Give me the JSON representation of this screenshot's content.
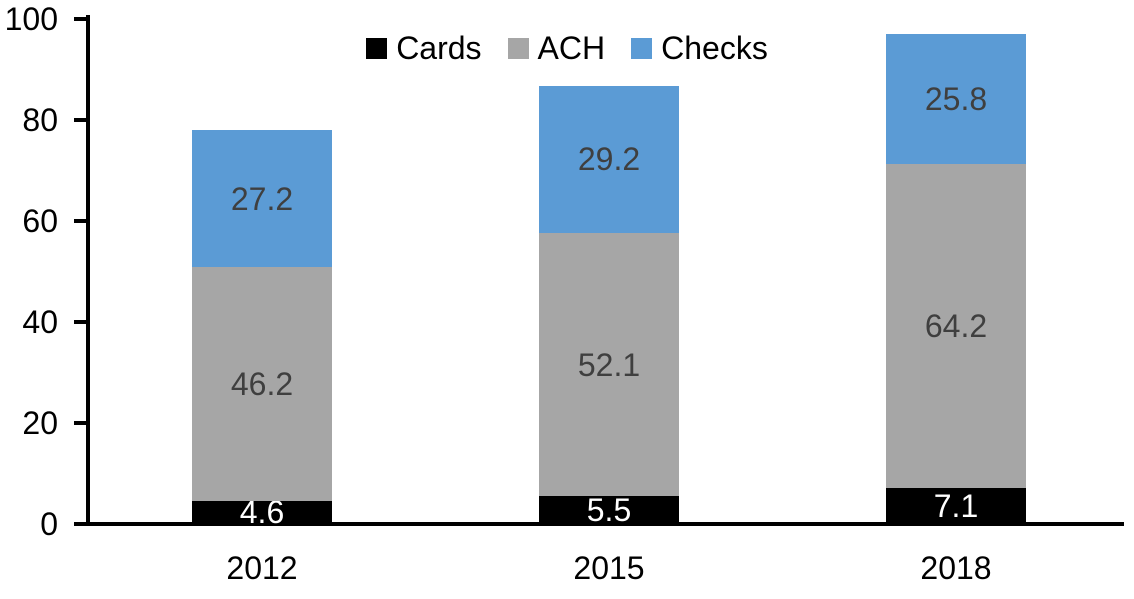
{
  "chart_data": {
    "type": "bar",
    "stacked": true,
    "title": "",
    "xlabel": "",
    "ylabel": "",
    "categories": [
      "2012",
      "2015",
      "2018"
    ],
    "series": [
      {
        "name": "Cards",
        "color": "#000000",
        "label_color": "#ffffff",
        "values": [
          4.6,
          5.5,
          7.1
        ]
      },
      {
        "name": "ACH",
        "color": "#a6a6a6",
        "label_color": "#3f3f3f",
        "values": [
          46.2,
          52.1,
          64.2
        ]
      },
      {
        "name": "Checks",
        "color": "#5b9bd5",
        "label_color": "#3f3f3f",
        "values": [
          27.2,
          29.2,
          25.8
        ]
      }
    ],
    "y_ticks": [
      0,
      20,
      40,
      60,
      80,
      100
    ],
    "ylim": [
      0,
      100
    ],
    "grid": false,
    "legend_position": "top-center",
    "axis_color": "#000000",
    "value_labels_shown": true
  }
}
